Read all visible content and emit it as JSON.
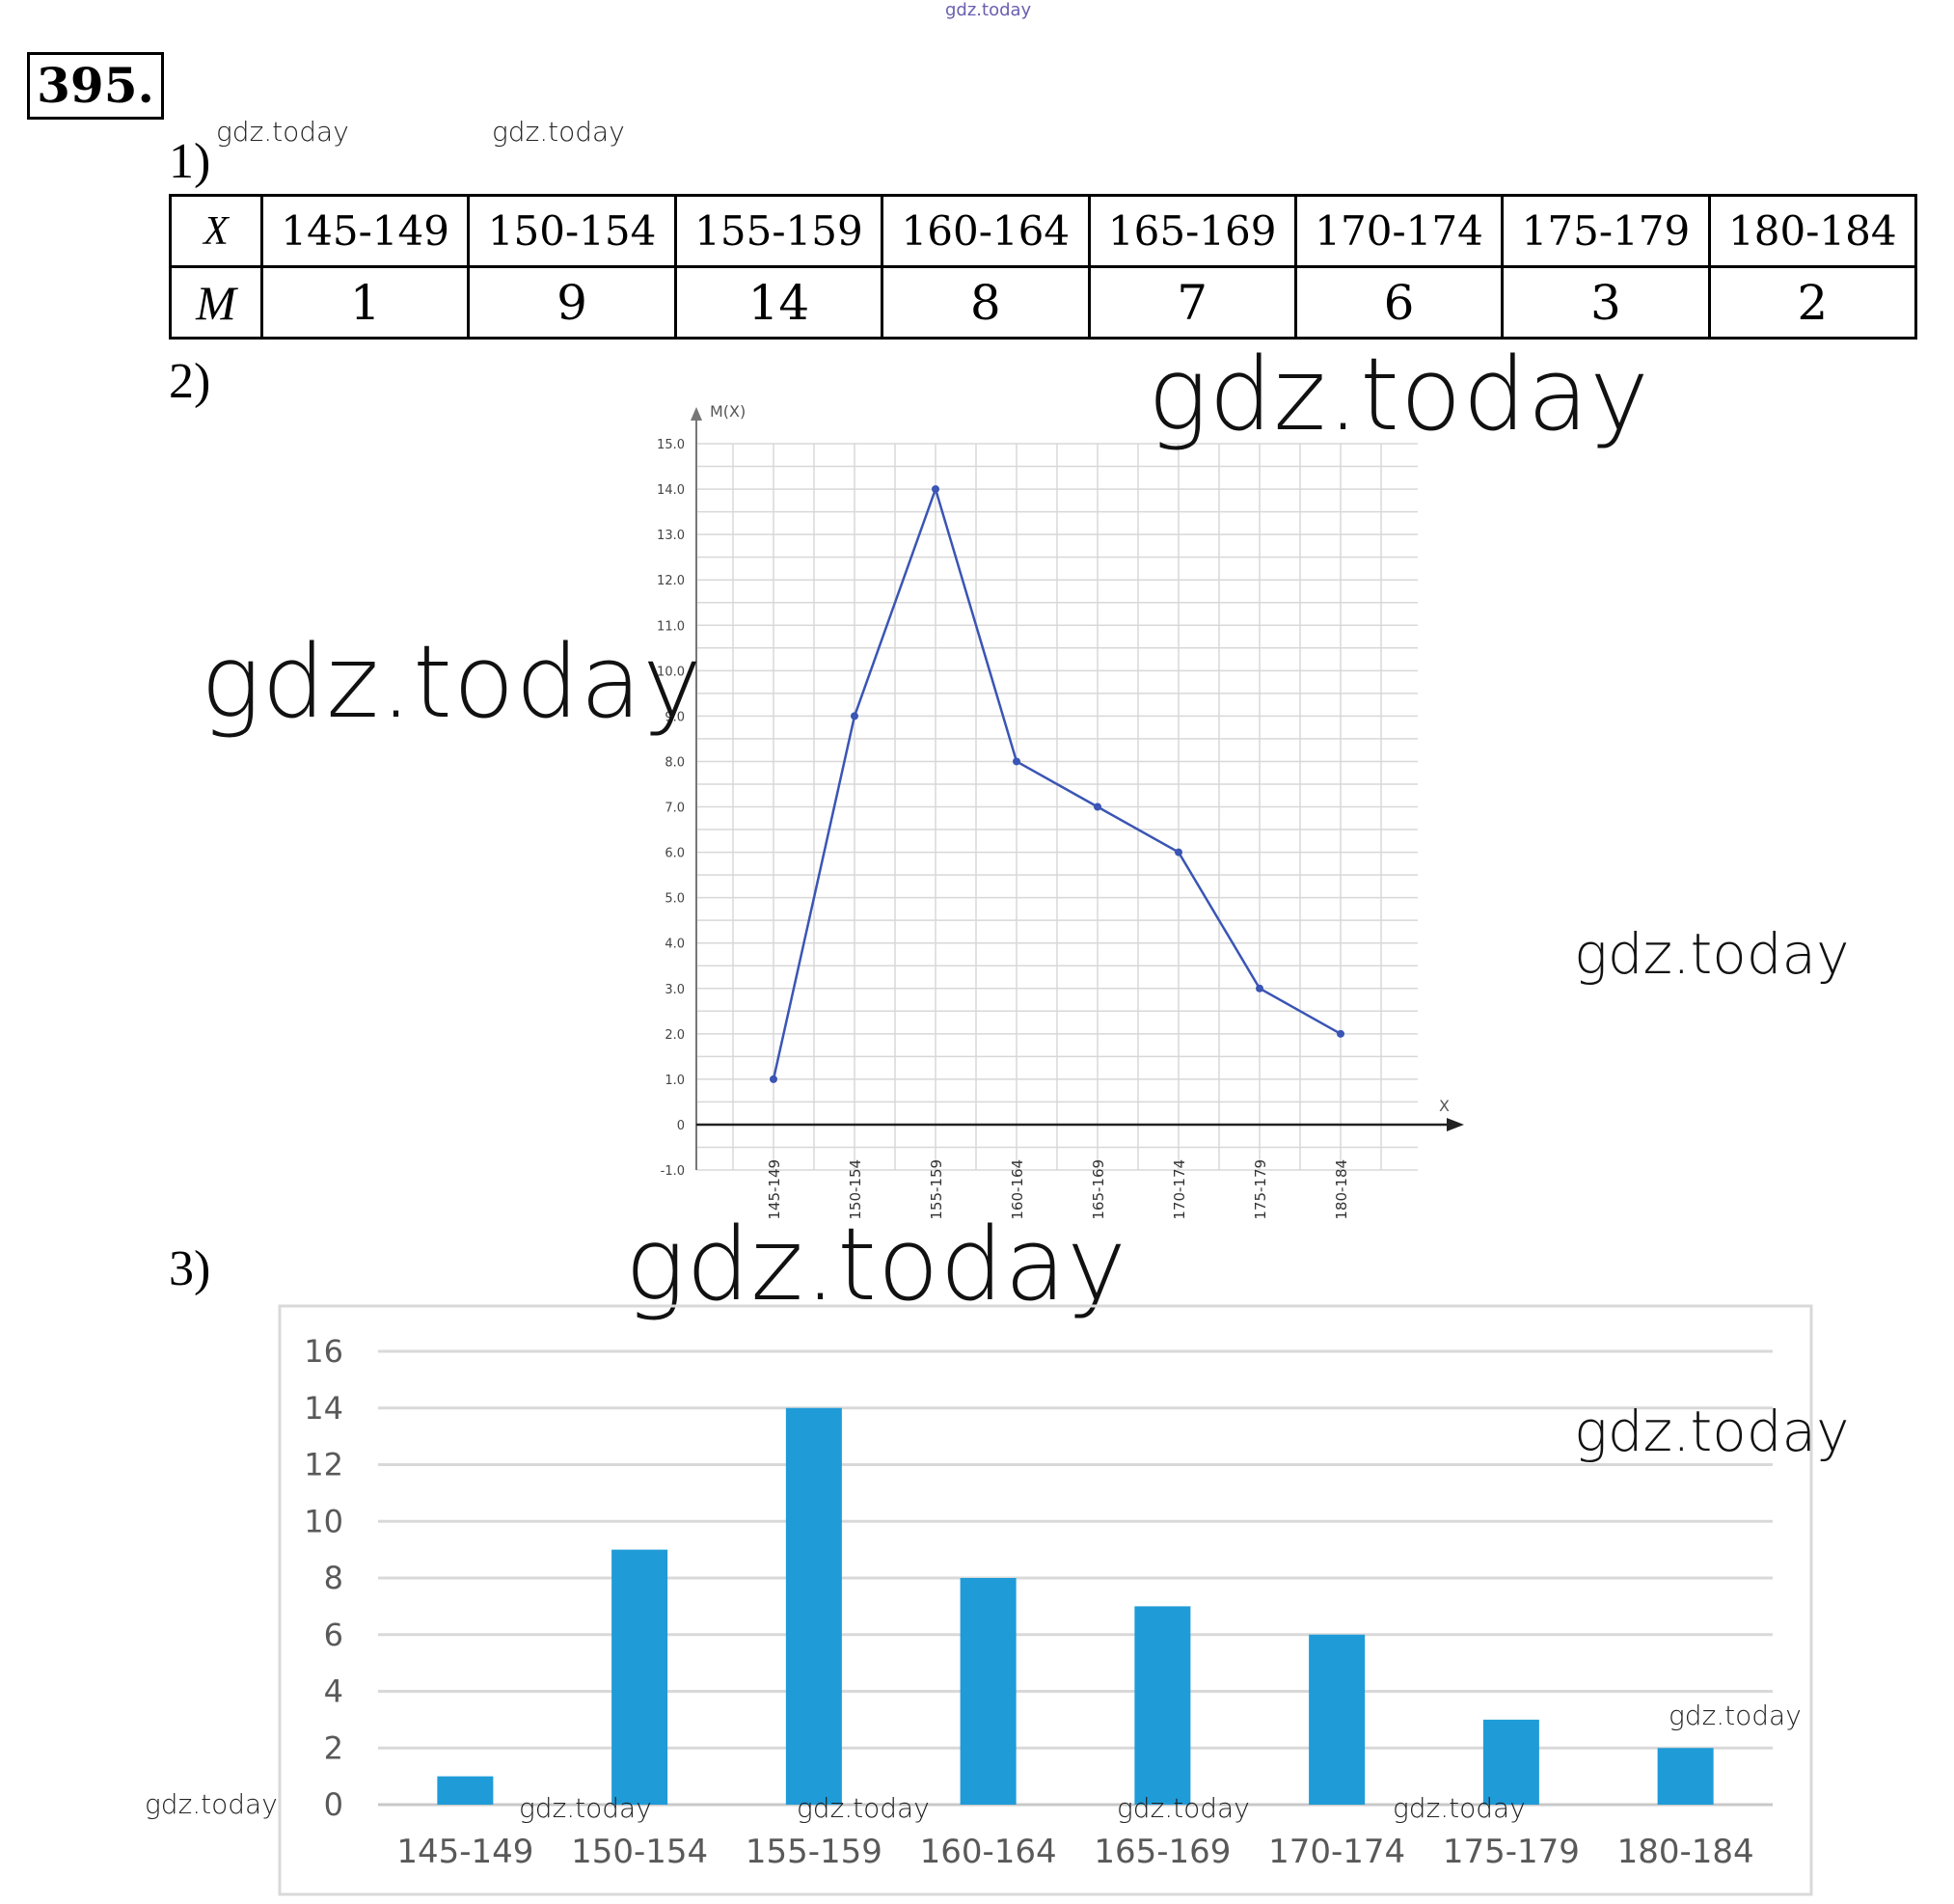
{
  "header": {
    "problem_number": "395.",
    "top_watermark": "gdz.today"
  },
  "parts": {
    "p1": "1)",
    "p2": "2)",
    "p3": "3)"
  },
  "table": {
    "row_x_label": "X",
    "row_m_label": "M",
    "intervals": [
      "145-149",
      "150-154",
      "155-159",
      "160-164",
      "165-169",
      "170-174",
      "175-179",
      "180-184"
    ],
    "counts": [
      "1",
      "9",
      "14",
      "8",
      "7",
      "6",
      "3",
      "2"
    ]
  },
  "watermarks": {
    "w1": "gdz.today",
    "w2": "gdz.today",
    "w3": "gdz.today",
    "w4": "gdz.today",
    "w5": "gdz.today",
    "w6": "gdz.today",
    "w7": "gdz.today",
    "w8": "gdz.today",
    "w9": "gdz.today",
    "w10": "gdz.today",
    "w11": "gdz.today",
    "w12": "gdz.today",
    "w13": "gdz.today",
    "w14": "gdz.today"
  },
  "chart_data": [
    {
      "type": "line",
      "ylabel": "M(X)",
      "xlabel": "X",
      "categories": [
        "145-149",
        "150-154",
        "155-159",
        "160-164",
        "165-169",
        "170-174",
        "175-179",
        "180-184"
      ],
      "values": [
        1,
        9,
        14,
        8,
        7,
        6,
        3,
        2
      ],
      "ylim": [
        -1,
        15
      ],
      "yticks": [
        "15.0",
        "14.0",
        "13.0",
        "12.0",
        "11.0",
        "10.0",
        "9.0",
        "8.0",
        "7.0",
        "6.0",
        "5.0",
        "4.0",
        "3.0",
        "2.0",
        "1.0",
        "0",
        "-1.0"
      ],
      "grid": true,
      "color": "#3a55b4"
    },
    {
      "type": "bar",
      "categories": [
        "145-149",
        "150-154",
        "155-159",
        "160-164",
        "165-169",
        "170-174",
        "175-179",
        "180-184"
      ],
      "values": [
        1,
        9,
        14,
        8,
        7,
        6,
        3,
        2
      ],
      "ylim": [
        0,
        16
      ],
      "yticks": [
        "16",
        "14",
        "12",
        "10",
        "8",
        "6",
        "4",
        "2",
        "0"
      ],
      "grid": true,
      "color": "#1f9bd8"
    }
  ]
}
